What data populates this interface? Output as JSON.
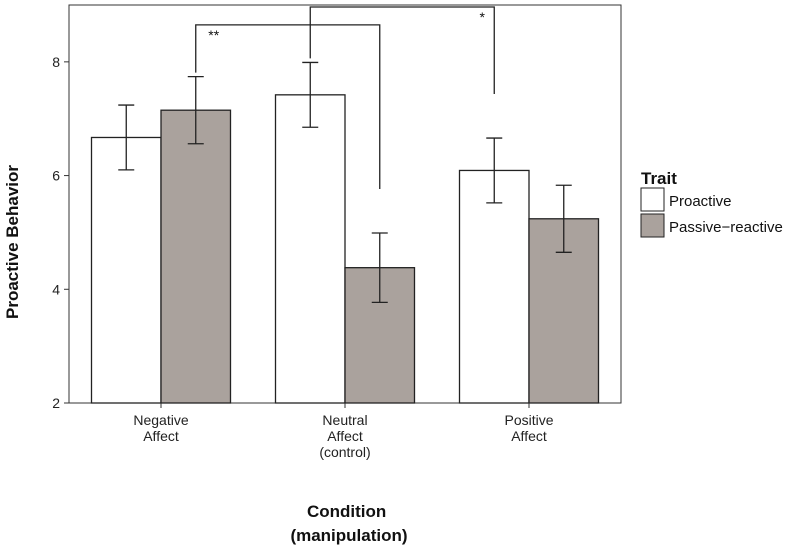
{
  "chart_data": {
    "type": "bar",
    "title": "",
    "xlabel": [
      "Condition",
      "(manipulation)"
    ],
    "ylabel": "Proactive Behavior",
    "ylim": [
      2,
      9.0
    ],
    "yticks": [
      2,
      4,
      6,
      8
    ],
    "categories": [
      [
        "Negative",
        "Affect"
      ],
      [
        "Neutral",
        "Affect",
        "(control)"
      ],
      [
        "Positive",
        "Affect"
      ]
    ],
    "series": [
      {
        "name": "Proactive",
        "color": "#ffffff",
        "values": [
          6.67,
          7.42,
          6.09
        ],
        "error": [
          0.57,
          0.57,
          0.57
        ]
      },
      {
        "name": "Passive−reactive",
        "color": "#aaa29d",
        "values": [
          7.15,
          4.38,
          5.24
        ],
        "error": [
          0.59,
          0.61,
          0.59
        ]
      }
    ],
    "legend": {
      "title": "Trait",
      "position": "right"
    },
    "significance": [
      {
        "label": "**",
        "from": {
          "category": 0,
          "series": 1
        },
        "to": {
          "category": 1,
          "series": 1
        }
      },
      {
        "label": "*",
        "from": {
          "category": 1,
          "series": 0
        },
        "to": {
          "category": 2,
          "series": 0
        }
      }
    ]
  }
}
